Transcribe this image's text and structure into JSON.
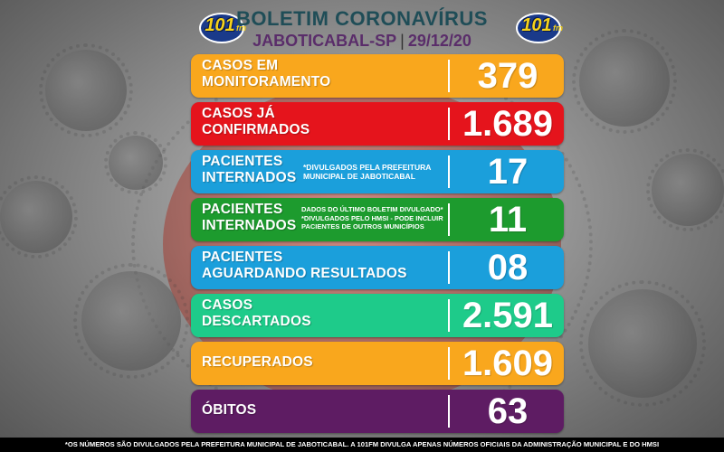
{
  "header": {
    "title": "BOLETIM CORONAVÍRUS",
    "city": "JABOTICABAL-SP",
    "separator": "|",
    "date": "29/12/20",
    "logo_text": "101",
    "logo_suffix": "fm"
  },
  "rows": [
    {
      "label_line1": "CASOS EM",
      "label_line2": "MONITORAMENTO",
      "value": "379",
      "color": "#f9a71d"
    },
    {
      "label_line1": "CASOS JÁ",
      "label_line2": "CONFIRMADOS",
      "value": "1.689",
      "color": "#e5141c"
    },
    {
      "label_line1": "PACIENTES",
      "label_line2": "INTERNADOS",
      "note_line1": "*DIVULGADOS PELA PREFEITURA",
      "note_line2": "MUNICIPAL DE JABOTICABAL",
      "value": "17",
      "color": "#1b9fdb"
    },
    {
      "label_line1": "PACIENTES",
      "label_line2": "INTERNADOS",
      "note_line1": "DADOS DO ÚLTIMO BOLETIM DIVULGADO*",
      "note_line2": "*DIVULGADOS PELO HMSI - PODE INCLUIR",
      "note_line3": "PACIENTES DE OUTROS MUNICÍPIOS",
      "value": "11",
      "color": "#1d9b2e"
    },
    {
      "label_line1": "PACIENTES",
      "label_line2": "AGUARDANDO RESULTADOS",
      "value": "08",
      "color": "#1b9fdb"
    },
    {
      "label_line1": "CASOS",
      "label_line2": "DESCARTADOS",
      "value": "2.591",
      "color": "#1ecb8a"
    },
    {
      "label_line1": "RECUPERADOS",
      "value": "1.609",
      "color": "#f9a71d"
    },
    {
      "label_line1": "ÓBITOS",
      "value": "63",
      "color": "#5e1c63"
    }
  ],
  "footer": {
    "text": "*OS NÚMEROS SÃO DIVULGADOS PELA PREFEITURA MUNICIPAL DE JABOTICABAL. A 101FM DIVULGA APENAS NÚMEROS OFICIAIS DA ADMINISTRAÇÃO MUNICIPAL E DO HMSI"
  }
}
